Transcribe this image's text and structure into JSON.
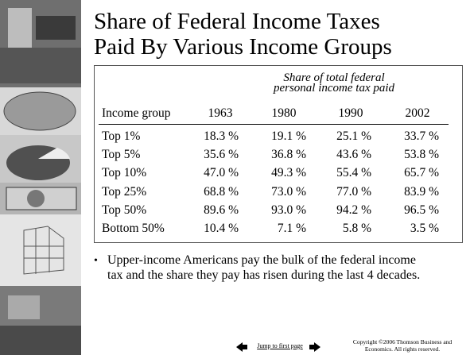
{
  "title": [
    "Share of Federal Income Taxes",
    "Paid By Various Income Groups"
  ],
  "table": {
    "caption": [
      "Share of total federal",
      "personal income tax paid"
    ],
    "header": [
      "Income group",
      "1963",
      "1980",
      "1990",
      "2002"
    ],
    "rows": [
      [
        "Top 1%",
        "18.3 %",
        "19.1 %",
        "25.1 %",
        "33.7 %"
      ],
      [
        "Top 5%",
        "35.6 %",
        "36.8 %",
        "43.6 %",
        "53.8 %"
      ],
      [
        "Top 10%",
        "47.0 %",
        "49.3 %",
        "55.4 %",
        "65.7 %"
      ],
      [
        "Top 25%",
        "68.8 %",
        "73.0 %",
        "77.0 %",
        "83.9 %"
      ],
      [
        "Top 50%",
        "89.6 %",
        "93.0 %",
        "94.2 %",
        "96.5 %"
      ],
      [
        "Bottom 50%",
        "10.4 %",
        "7.1 %",
        "5.8 %",
        "3.5 %"
      ]
    ]
  },
  "bullet": [
    "Upper-income Americans pay the bulk of the federal income",
    "tax and the share they pay has risen during the last 4 decades."
  ],
  "nav": {
    "first_page": "Jump to first page"
  },
  "copyright": [
    "Copyright ©2006  Thomson Business and",
    "Economics. All rights reserved."
  ]
}
